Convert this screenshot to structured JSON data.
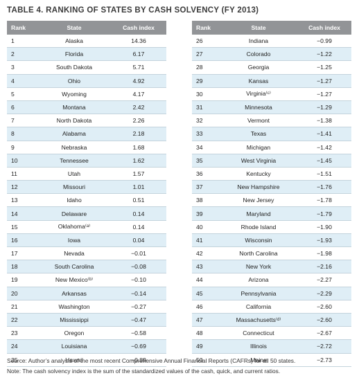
{
  "title": "TABLE 4. RANKING OF STATES BY CASH SOLVENCY (FY 2013)",
  "headers": {
    "rank": "Rank",
    "state": "State",
    "index": "Cash index"
  },
  "left_rows": [
    {
      "rank": "1",
      "state": "Alaska",
      "index": "14.36"
    },
    {
      "rank": "2",
      "state": "Florida",
      "index": "6.17"
    },
    {
      "rank": "3",
      "state": "South Dakota",
      "index": "5.71"
    },
    {
      "rank": "4",
      "state": "Ohio",
      "index": "4.92"
    },
    {
      "rank": "5",
      "state": "Wyoming",
      "index": "4.17"
    },
    {
      "rank": "6",
      "state": "Montana",
      "index": "2.42"
    },
    {
      "rank": "7",
      "state": "North Dakota",
      "index": "2.26"
    },
    {
      "rank": "8",
      "state": "Alabama",
      "index": "2.18"
    },
    {
      "rank": "9",
      "state": "Nebraska",
      "index": "1.68"
    },
    {
      "rank": "10",
      "state": "Tennessee",
      "index": "1.62"
    },
    {
      "rank": "11",
      "state": "Utah",
      "index": "1.57"
    },
    {
      "rank": "12",
      "state": "Missouri",
      "index": "1.01"
    },
    {
      "rank": "13",
      "state": "Idaho",
      "index": "0.51"
    },
    {
      "rank": "14",
      "state": "Delaware",
      "index": "0.14"
    },
    {
      "rank": "15",
      "state": "Oklahoma⁽ᵃ⁾",
      "index": "0.14"
    },
    {
      "rank": "16",
      "state": "Iowa",
      "index": "0.04"
    },
    {
      "rank": "17",
      "state": "Nevada",
      "index": "−0.01"
    },
    {
      "rank": "18",
      "state": "South Carolina",
      "index": "−0.08"
    },
    {
      "rank": "19",
      "state": "New Mexico⁽ᵇ⁾",
      "index": "−0.10"
    },
    {
      "rank": "20",
      "state": "Arkansas",
      "index": "−0.14"
    },
    {
      "rank": "21",
      "state": "Washington",
      "index": "−0.27"
    },
    {
      "rank": "22",
      "state": "Mississippi",
      "index": "−0.47"
    },
    {
      "rank": "23",
      "state": "Oregon",
      "index": "−0.58"
    },
    {
      "rank": "24",
      "state": "Louisiana",
      "index": "−0.69"
    },
    {
      "rank": "25",
      "state": "Hawaii",
      "index": "−0.89"
    }
  ],
  "right_rows": [
    {
      "rank": "26",
      "state": "Indiana",
      "index": "−0.99"
    },
    {
      "rank": "27",
      "state": "Colorado",
      "index": "−1.22"
    },
    {
      "rank": "28",
      "state": "Georgia",
      "index": "−1.25"
    },
    {
      "rank": "29",
      "state": "Kansas",
      "index": "−1.27"
    },
    {
      "rank": "30",
      "state": "Virginia⁽ᶜ⁾",
      "index": "−1.27"
    },
    {
      "rank": "31",
      "state": "Minnesota",
      "index": "−1.29"
    },
    {
      "rank": "32",
      "state": "Vermont",
      "index": "−1.38"
    },
    {
      "rank": "33",
      "state": "Texas",
      "index": "−1.41"
    },
    {
      "rank": "34",
      "state": "Michigan",
      "index": "−1.42"
    },
    {
      "rank": "35",
      "state": "West Virginia",
      "index": "−1.45"
    },
    {
      "rank": "36",
      "state": "Kentucky",
      "index": "−1.51"
    },
    {
      "rank": "37",
      "state": "New Hampshire",
      "index": "−1.76"
    },
    {
      "rank": "38",
      "state": "New Jersey",
      "index": "−1.78"
    },
    {
      "rank": "39",
      "state": "Maryland",
      "index": "−1.79"
    },
    {
      "rank": "40",
      "state": "Rhode Island",
      "index": "−1.90"
    },
    {
      "rank": "41",
      "state": "Wisconsin",
      "index": "−1.93"
    },
    {
      "rank": "42",
      "state": "North Carolina",
      "index": "−1.98"
    },
    {
      "rank": "43",
      "state": "New York",
      "index": "−2.16"
    },
    {
      "rank": "44",
      "state": "Arizona",
      "index": "−2.27"
    },
    {
      "rank": "45",
      "state": "Pennsylvania",
      "index": "−2.29"
    },
    {
      "rank": "46",
      "state": "California",
      "index": "−2.60"
    },
    {
      "rank": "47",
      "state": "Massachusetts⁽ᵈ⁾",
      "index": "−2.60"
    },
    {
      "rank": "48",
      "state": "Connecticut",
      "index": "−2.67"
    },
    {
      "rank": "49",
      "state": "Illinois",
      "index": "−2.72"
    },
    {
      "rank": "50",
      "state": "Maine",
      "index": "−2.73"
    }
  ],
  "source": "Source: Author’s analysis of the most recent Comprehensive Annual Financial Reports (CAFRs) for all 50 states.",
  "note": "Note: The cash solvency index is the sum of the standardized values of the cash, quick, and current ratios.",
  "colors": {
    "header_bg": "#929497",
    "shaded_row": "#dfeef6",
    "row_rule": "#c3d3dc"
  }
}
